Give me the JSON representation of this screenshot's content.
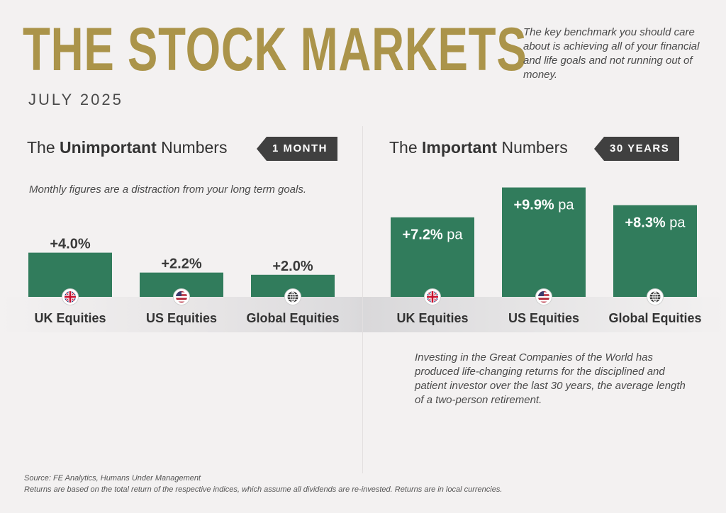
{
  "header": {
    "title": "THE STOCK MARKETS",
    "subtitle": "JULY 2025",
    "intro": "The key benchmark you should care about is achieving all of your financial and life goals and not running out of money."
  },
  "left_section": {
    "heading_pre": "The ",
    "heading_bold": "Unimportant",
    "heading_post": " Numbers",
    "tag": "1 MONTH",
    "note": "Monthly figures are a distraction from your long term goals."
  },
  "right_section": {
    "heading_pre": "The ",
    "heading_bold": "Important",
    "heading_post": " Numbers",
    "tag": "30 YEARS",
    "note": "Investing in the Great Companies of the World has produced life-changing returns for the disciplined and patient investor over the last 30 years, the average length of a two-person retirement."
  },
  "colors": {
    "bar": "#317c5c",
    "title_gold": "#ab944a",
    "tag_bg": "#404040"
  },
  "chart_data": [
    {
      "type": "bar",
      "title": "",
      "categories": [
        "UK Equities",
        "US Equities",
        "Global Equities"
      ],
      "icons": [
        "uk-flag-icon",
        "us-flag-icon",
        "globe-icon"
      ],
      "values": [
        4.0,
        2.2,
        2.0
      ],
      "labels": [
        "+4.0%",
        "+2.2%",
        "+2.0%"
      ],
      "label_suffix": "",
      "ylim": [
        0,
        12
      ]
    },
    {
      "type": "bar",
      "title": "",
      "categories": [
        "UK Equities",
        "US Equities",
        "Global Equities"
      ],
      "icons": [
        "uk-flag-icon",
        "us-flag-icon",
        "globe-icon"
      ],
      "values": [
        7.2,
        9.9,
        8.3
      ],
      "labels": [
        "+7.2%",
        "+9.9%",
        "+8.3%"
      ],
      "label_suffix": " pa",
      "ylim": [
        0,
        12
      ]
    }
  ],
  "footer": {
    "source": "Source: FE Analytics, Humans Under Management",
    "disclaimer": "Returns are based on the total return of the respective indices, which assume all dividends are re-invested. Returns are in local currencies."
  }
}
